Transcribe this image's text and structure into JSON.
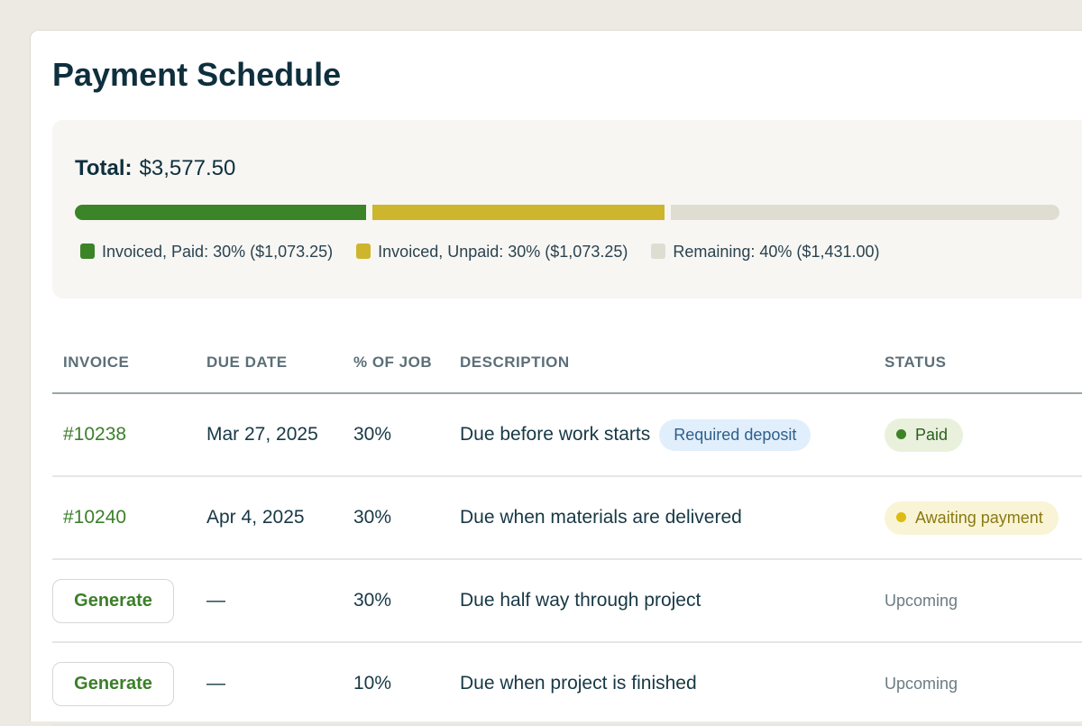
{
  "title": "Payment Schedule",
  "summary": {
    "total_label": "Total:",
    "total_value": "$3,577.50",
    "segments": [
      {
        "label": "Invoiced, Paid: 30% ($1,073.25)",
        "percent": 30,
        "color": "#3b8427"
      },
      {
        "label": "Invoiced, Unpaid: 30% ($1,073.25)",
        "percent": 30,
        "color": "#cdb52e"
      },
      {
        "label": "Remaining: 40% ($1,431.00)",
        "percent": 40,
        "color": "#dfddd2"
      }
    ]
  },
  "table": {
    "headers": [
      "INVOICE",
      "DUE DATE",
      "% OF JOB",
      "DESCRIPTION",
      "STATUS"
    ],
    "rows": [
      {
        "invoice": "#10238",
        "due": "Mar 27, 2025",
        "pct": "30%",
        "desc": "Due before work starts",
        "tag": "Required deposit",
        "status": "Paid"
      },
      {
        "invoice": "#10240",
        "due": "Apr 4, 2025",
        "pct": "30%",
        "desc": "Due when materials are delivered",
        "status": "Awaiting payment"
      },
      {
        "action": "Generate",
        "due": "—",
        "pct": "30%",
        "desc": "Due half way through project",
        "status": "Upcoming"
      },
      {
        "action": "Generate",
        "due": "—",
        "pct": "10%",
        "desc": "Due when project is finished",
        "status": "Upcoming"
      }
    ]
  }
}
